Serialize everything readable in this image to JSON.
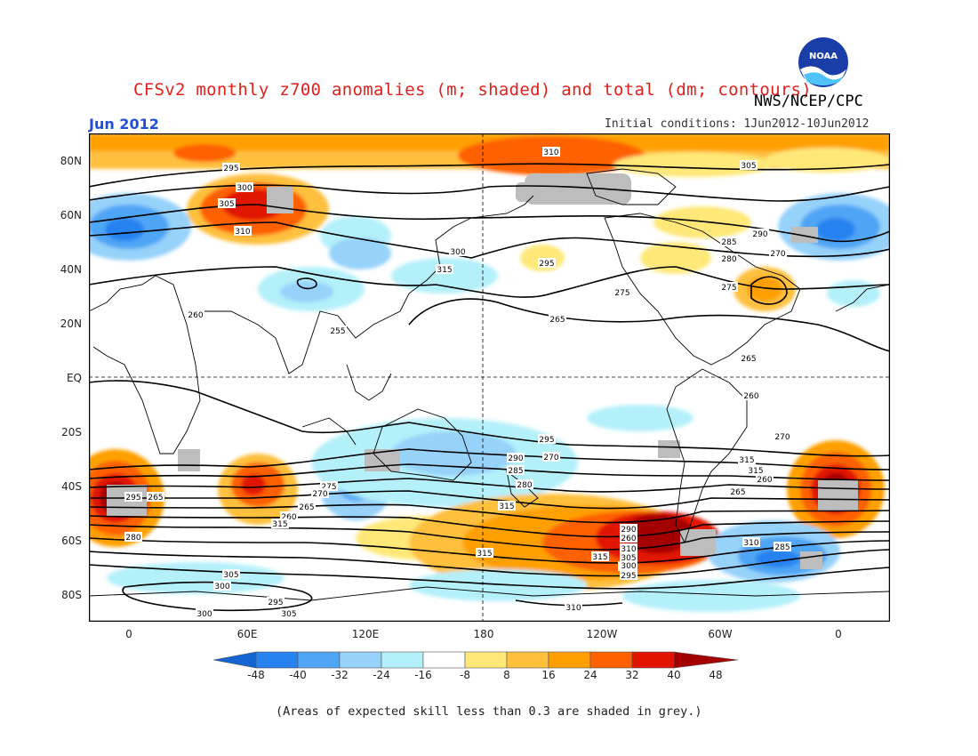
{
  "title": "CFSv2 monthly z700 anomalies (m; shaded) and total (dm; contours)",
  "agency": "NWS/NCEP/CPC",
  "logo_text": "NOAA",
  "month": "Jun 2012",
  "initial_conditions": "Initial conditions: 1Jun2012-10Jun2012",
  "note": "(Areas of expected skill less than 0.3 are shaded in grey.)",
  "colors": {
    "grey_mask": "#bdbdbd",
    "scale": [
      "#1464d2",
      "#2882f0",
      "#50a5f5",
      "#96d2fa",
      "#b4f0fa",
      "#ffffff",
      "#ffe878",
      "#ffc03c",
      "#ffa000",
      "#ff6000",
      "#e11400",
      "#a50000"
    ]
  },
  "map": {
    "y_labels": [
      "80N",
      "60N",
      "40N",
      "20N",
      "EQ",
      "20S",
      "40S",
      "60S",
      "80S"
    ],
    "x_labels": [
      "0",
      "60E",
      "120E",
      "180",
      "120W",
      "60W",
      "0"
    ],
    "colorbar_labels": [
      "-48",
      "-40",
      "-32",
      "-24",
      "-16",
      "-8",
      "8",
      "16",
      "24",
      "32",
      "40",
      "48"
    ],
    "contour_labels": [
      "295",
      "300",
      "305",
      "310",
      "315",
      "310",
      "305",
      "300",
      "295",
      "290",
      "285",
      "280",
      "275",
      "270",
      "265",
      "260",
      "255",
      "265",
      "260",
      "295",
      "290",
      "285",
      "280",
      "275",
      "270",
      "265",
      "260",
      "315",
      "315",
      "315",
      "315",
      "310",
      "305",
      "300",
      "295",
      "300",
      "305",
      "310",
      "315",
      "315",
      "260",
      "265",
      "270",
      "265",
      "260",
      "310",
      "305",
      "300",
      "295",
      "290",
      "285",
      "280",
      "275",
      "270",
      "265",
      "295"
    ]
  }
}
